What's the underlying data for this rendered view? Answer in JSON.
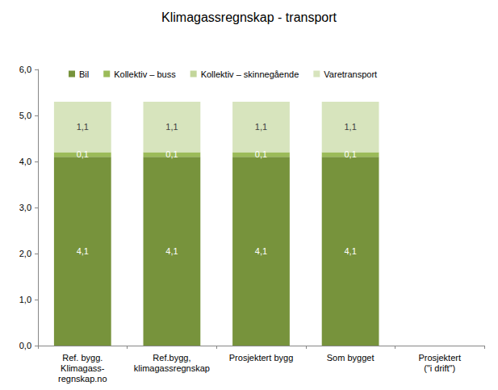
{
  "chart_data": {
    "type": "bar",
    "title": "Klimagassregnskap - transport",
    "categories": [
      "Ref. bygg.\nKlimagass-\nregnskap.no",
      "Ref.bygg,\nklimagassregnskap",
      "Prosjektert bygg",
      "Som bygget",
      "Prosjektert\n(\"i drift\")"
    ],
    "series": [
      {
        "name": "Bil",
        "color": "#77933c",
        "values": [
          4.1,
          4.1,
          4.1,
          4.1,
          null
        ],
        "value_labels": [
          "4,1",
          "4,1",
          "4,1",
          "4,1",
          null
        ]
      },
      {
        "name": "Kollektiv – buss",
        "color": "#9bbb59",
        "values": [
          0.1,
          0.1,
          0.1,
          0.1,
          null
        ],
        "value_labels": [
          "0,1",
          "0,1",
          "0,1",
          "0,1",
          null
        ]
      },
      {
        "name": "Kollektiv – skinnegående",
        "color": "#c3d69b",
        "values": [
          null,
          null,
          null,
          null,
          null
        ]
      },
      {
        "name": "Varetransport",
        "color": "#d7e4bd",
        "values": [
          1.1,
          1.1,
          1.1,
          1.1,
          null
        ],
        "value_labels": [
          "1,1",
          "1,1",
          "1,1",
          "1,1",
          null
        ]
      }
    ],
    "ylim": [
      0,
      6
    ],
    "yticks": [
      {
        "value": 0,
        "label": "0,0"
      },
      {
        "value": 1,
        "label": "1,0"
      },
      {
        "value": 2,
        "label": "2,0"
      },
      {
        "value": 3,
        "label": "3,0"
      },
      {
        "value": 4,
        "label": "4,0"
      },
      {
        "value": 5,
        "label": "5,0"
      },
      {
        "value": 6,
        "label": "6,0"
      }
    ],
    "stacked": true,
    "data_labels": true,
    "legend": "top",
    "grid": false
  }
}
